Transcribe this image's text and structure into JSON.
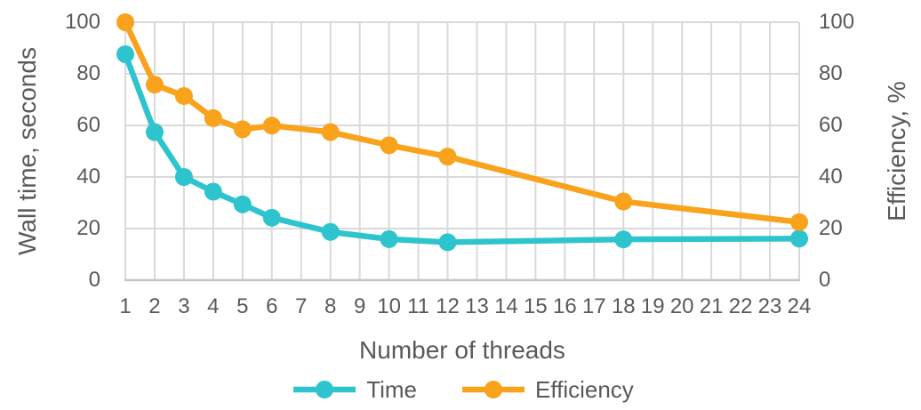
{
  "chart_data": {
    "type": "line",
    "title": "",
    "xlabel": "Number of threads",
    "ylabel_left": "Wall time, seconds",
    "ylabel_right": "Efficiency, %",
    "x_ticks": [
      "1",
      "2",
      "3",
      "4",
      "5",
      "6",
      "7",
      "8",
      "9",
      "10",
      "11",
      "12",
      "13",
      "14",
      "15",
      "16",
      "17",
      "18",
      "19",
      "20",
      "21",
      "22",
      "23",
      "24"
    ],
    "y_ticks_left": [
      0,
      20,
      40,
      60,
      80,
      100
    ],
    "y_ticks_right": [
      0,
      20,
      40,
      60,
      80,
      100
    ],
    "ylim_left": [
      0,
      100
    ],
    "ylim_right": [
      0,
      100
    ],
    "grid": true,
    "legend_position": "bottom",
    "series": [
      {
        "name": "Time",
        "axis": "left",
        "color": "#2EC4CD",
        "x": [
          1,
          2,
          3,
          4,
          5,
          6,
          8,
          10,
          12,
          18,
          24
        ],
        "values": [
          87.6,
          57.4,
          40.0,
          34.3,
          29.4,
          24.2,
          18.7,
          15.9,
          14.7,
          15.8,
          16.1
        ]
      },
      {
        "name": "Efficiency",
        "axis": "right",
        "color": "#F9A21C",
        "x": [
          1,
          2,
          3,
          4,
          5,
          6,
          8,
          10,
          12,
          18,
          24
        ],
        "values": [
          100.0,
          75.8,
          71.4,
          62.8,
          58.5,
          59.9,
          57.4,
          52.3,
          47.9,
          30.5,
          22.5
        ]
      }
    ]
  },
  "colors": {
    "text": "#595959",
    "gridline": "#D9D9D9",
    "axis_line": "#C6C6C6",
    "background": "#FFFFFF",
    "time_series": "#2EC4CD",
    "efficiency_series": "#F9A21C"
  }
}
